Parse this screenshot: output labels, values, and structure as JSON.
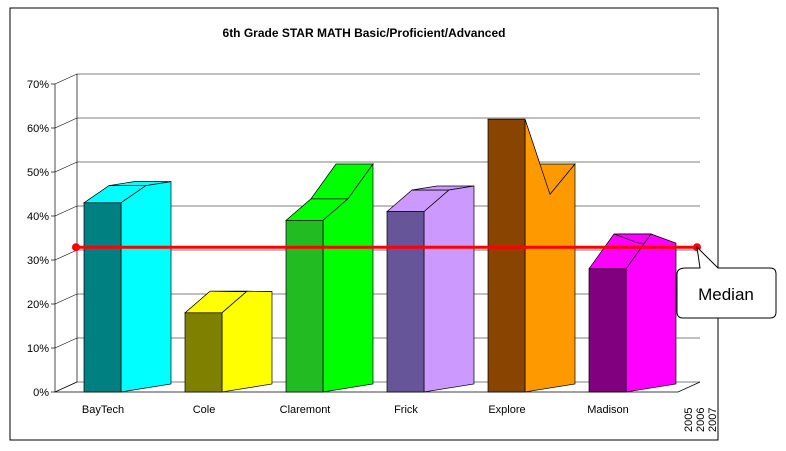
{
  "chart_data": {
    "type": "bar3d",
    "title": "6th Grade STAR MATH Basic/Proficient/Advanced",
    "categories": [
      "BayTech",
      "Cole",
      "Claremont",
      "Frick",
      "Explore",
      "Madison"
    ],
    "series": [
      {
        "name": "2005",
        "values": [
          43,
          18,
          39,
          41,
          62,
          28
        ]
      },
      {
        "name": "2006",
        "values": [
          46,
          22,
          43,
          45,
          44,
          35
        ]
      },
      {
        "name": "2007",
        "values": [
          46,
          21,
          50,
          45,
          50,
          32
        ]
      }
    ],
    "colors": [
      {
        "front": "#008080",
        "side": "#00ffff"
      },
      {
        "front": "#808000",
        "side": "#ffff00"
      },
      {
        "front": "#22bb22",
        "side": "#00ff00"
      },
      {
        "front": "#665599",
        "side": "#cc99ff"
      },
      {
        "front": "#884400",
        "side": "#ff9900"
      },
      {
        "front": "#800080",
        "side": "#ff00ff"
      }
    ],
    "median": {
      "value": 32,
      "label": "Median"
    },
    "ylim": [
      0,
      70
    ],
    "yticks": [
      {
        "value": 0,
        "label": "0%"
      },
      {
        "value": 10,
        "label": "10%"
      },
      {
        "value": 20,
        "label": "20%"
      },
      {
        "value": 30,
        "label": "30%"
      },
      {
        "value": 40,
        "label": "40%"
      },
      {
        "value": 50,
        "label": "50%"
      },
      {
        "value": 60,
        "label": "60%"
      },
      {
        "value": 70,
        "label": "70%"
      }
    ],
    "grid": true
  }
}
